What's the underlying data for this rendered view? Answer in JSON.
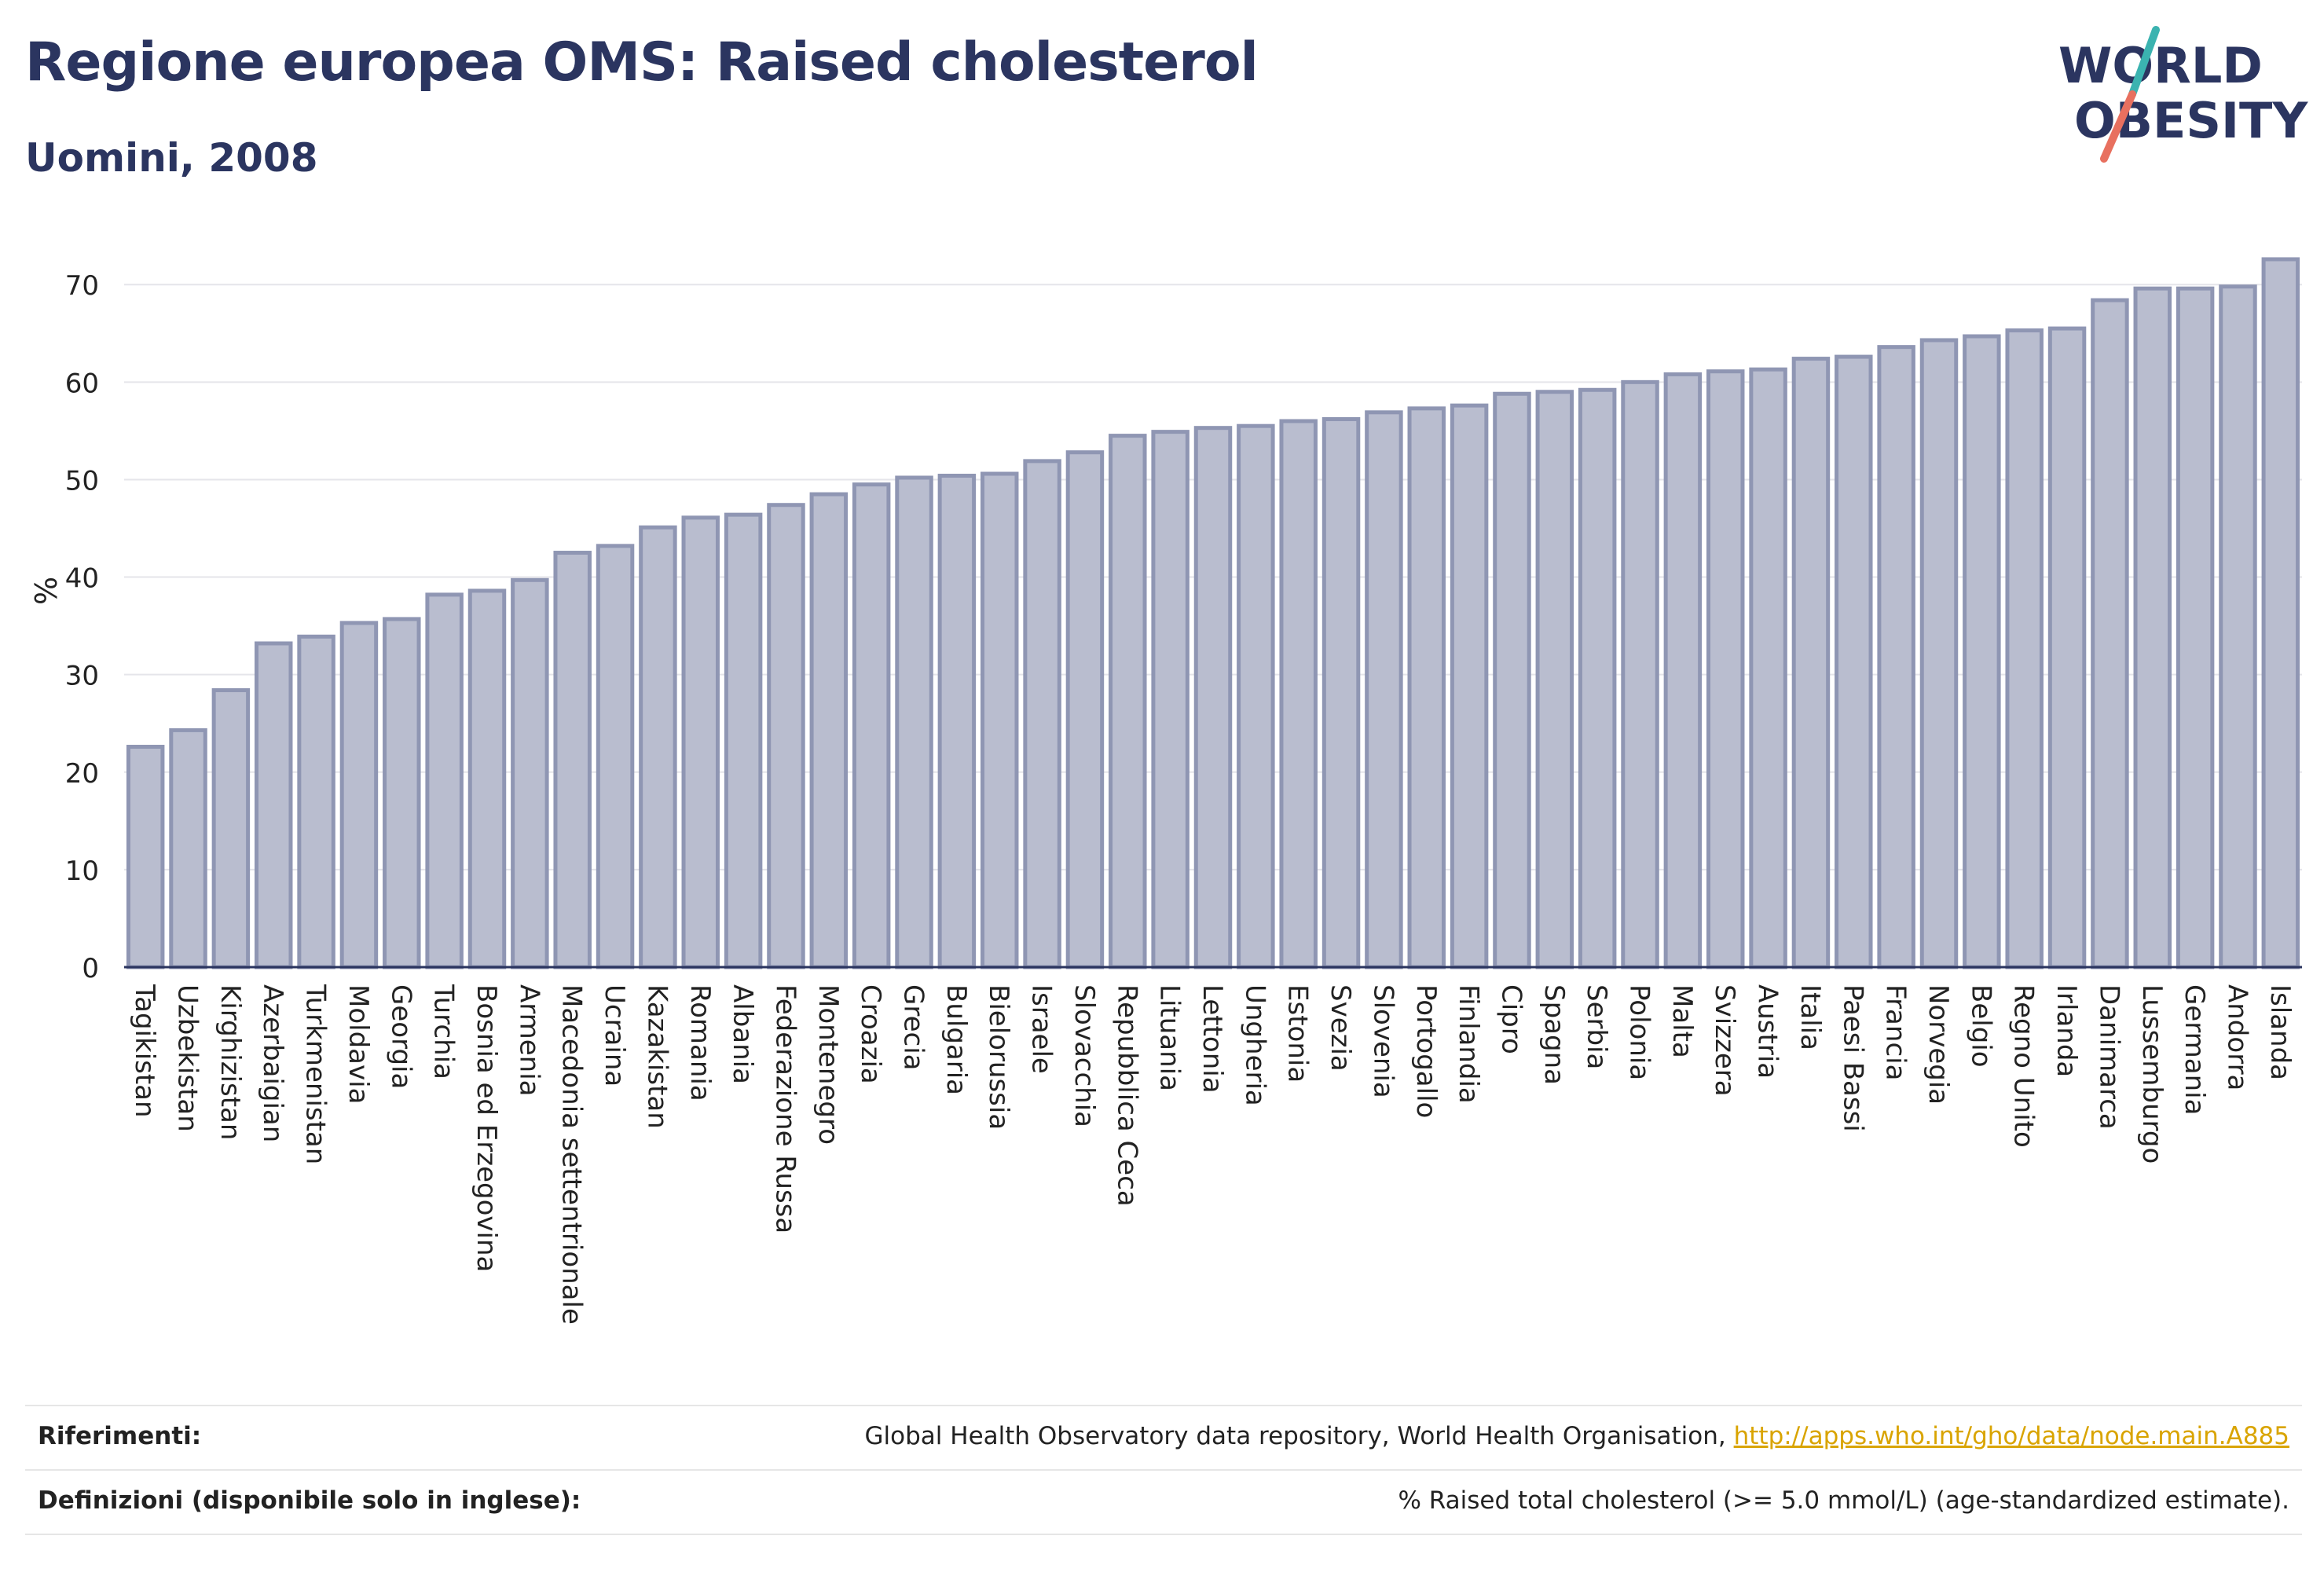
{
  "header": {
    "title": "Regione europea OMS: Raised cholesterol",
    "subtitle": "Uomini, 2008"
  },
  "logo": {
    "line1": "WORLD",
    "line2": "OBESITY",
    "text_color": "#2b3560",
    "slash_top_color": "#3bb3b0",
    "slash_bottom_color": "#e8705f"
  },
  "chart_data": {
    "type": "bar",
    "ylabel": "%",
    "xlabel": "",
    "ylim": [
      0,
      73
    ],
    "yticks": [
      0,
      10,
      20,
      30,
      40,
      50,
      60,
      70
    ],
    "grid": true,
    "bar_fill": "#b9bdcf",
    "bar_stroke": "#8f96b3",
    "categories": [
      "Tagikistan",
      "Uzbekistan",
      "Kirghizistan",
      "Azerbaigian",
      "Turkmenistan",
      "Moldavia",
      "Georgia",
      "Turchia",
      "Bosnia ed Erzegovina",
      "Armenia",
      "Macedonia settentrionale",
      "Ucraina",
      "Kazakistan",
      "Romania",
      "Albania",
      "Federazione Russa",
      "Montenegro",
      "Croazia",
      "Grecia",
      "Bulgaria",
      "Bielorussia",
      "Israele",
      "Slovacchia",
      "Repubblica Ceca",
      "Lituania",
      "Lettonia",
      "Ungheria",
      "Estonia",
      "Svezia",
      "Slovenia",
      "Portogallo",
      "Finlandia",
      "Cipro",
      "Spagna",
      "Serbia",
      "Polonia",
      "Malta",
      "Svizzera",
      "Austria",
      "Italia",
      "Paesi Bassi",
      "Francia",
      "Norvegia",
      "Belgio",
      "Regno Unito",
      "Irlanda",
      "Danimarca",
      "Lussemburgo",
      "Germania",
      "Andorra",
      "Islanda"
    ],
    "values": [
      22.6,
      24.3,
      28.4,
      33.2,
      33.9,
      35.3,
      35.7,
      38.2,
      38.6,
      39.7,
      42.5,
      43.2,
      45.1,
      46.1,
      46.4,
      47.4,
      48.5,
      49.5,
      50.2,
      50.4,
      50.6,
      51.9,
      52.8,
      54.5,
      54.9,
      55.3,
      55.5,
      56.0,
      56.2,
      56.9,
      57.3,
      57.6,
      58.8,
      59.0,
      59.2,
      60.0,
      60.8,
      61.1,
      61.3,
      62.4,
      62.6,
      63.6,
      64.3,
      64.7,
      65.3,
      65.5,
      68.4,
      69.6,
      69.6,
      69.8,
      72.6
    ]
  },
  "footer": {
    "references_label": "Riferimenti:",
    "references_text": "Global Health Observatory data repository, World Health Organisation, ",
    "references_link": "http://apps.who.int/gho/data/node.main.A885",
    "definitions_label": "Definizioni (disponibile solo in inglese):",
    "definitions_text": "% Raised total cholesterol (>= 5.0 mmol/L) (age-standardized estimate)."
  }
}
